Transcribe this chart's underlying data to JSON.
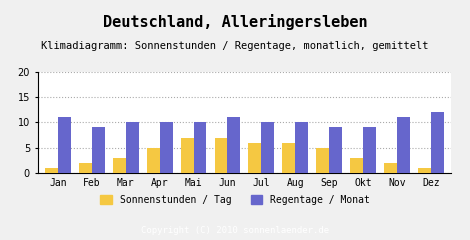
{
  "title": "Deutschland, Alleringersleben",
  "subtitle": "Klimadiagramm: Sonnenstunden / Regentage, monatlich, gemittelt",
  "months": [
    "Jan",
    "Feb",
    "Mar",
    "Apr",
    "Mai",
    "Jun",
    "Jul",
    "Aug",
    "Sep",
    "Okt",
    "Nov",
    "Dez"
  ],
  "sonnenstunden": [
    1,
    2,
    3,
    5,
    7,
    7,
    6,
    6,
    5,
    3,
    2,
    1
  ],
  "regentage": [
    11,
    9,
    10,
    10,
    10,
    11,
    10,
    10,
    9,
    9,
    11,
    12
  ],
  "sun_color": "#F5C842",
  "rain_color": "#6666CC",
  "background_color": "#F0F0F0",
  "plot_bg_color": "#FFFFFF",
  "footer_color": "#A0A0A0",
  "footer_text": "Copyright (C) 2010 sonnenlaender.de",
  "legend_sun": "Sonnenstunden / Tag",
  "legend_rain": "Regentage / Monat",
  "ylim": [
    0,
    20
  ],
  "yticks": [
    0,
    5,
    10,
    15,
    20
  ],
  "title_fontsize": 11,
  "subtitle_fontsize": 7.5,
  "tick_fontsize": 7,
  "legend_fontsize": 7
}
